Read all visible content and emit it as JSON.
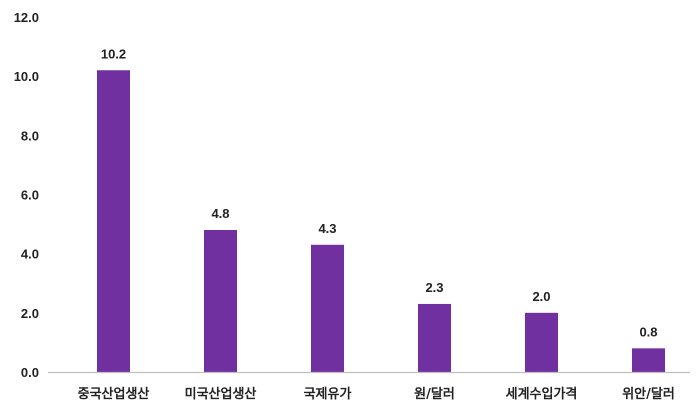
{
  "chart_data": {
    "type": "bar",
    "categories": [
      "중국산업생산",
      "미국산업생산",
      "국제유가",
      "원/달러",
      "세계수입가격",
      "위안/달러"
    ],
    "values": [
      10.2,
      4.8,
      4.3,
      2.3,
      2.0,
      0.8
    ],
    "data_labels": [
      "10.2",
      "4.8",
      "4.3",
      "2.3",
      "2.0",
      "0.8"
    ],
    "y_ticks": [
      "0.0",
      "2.0",
      "4.0",
      "6.0",
      "8.0",
      "10.0",
      "12.0"
    ],
    "ylim": [
      0,
      12
    ],
    "grid": false,
    "legend": "none",
    "title": "",
    "xlabel": "",
    "ylabel": "",
    "bar_color": "#7030a0",
    "axis_color": "#bfbfbf"
  }
}
